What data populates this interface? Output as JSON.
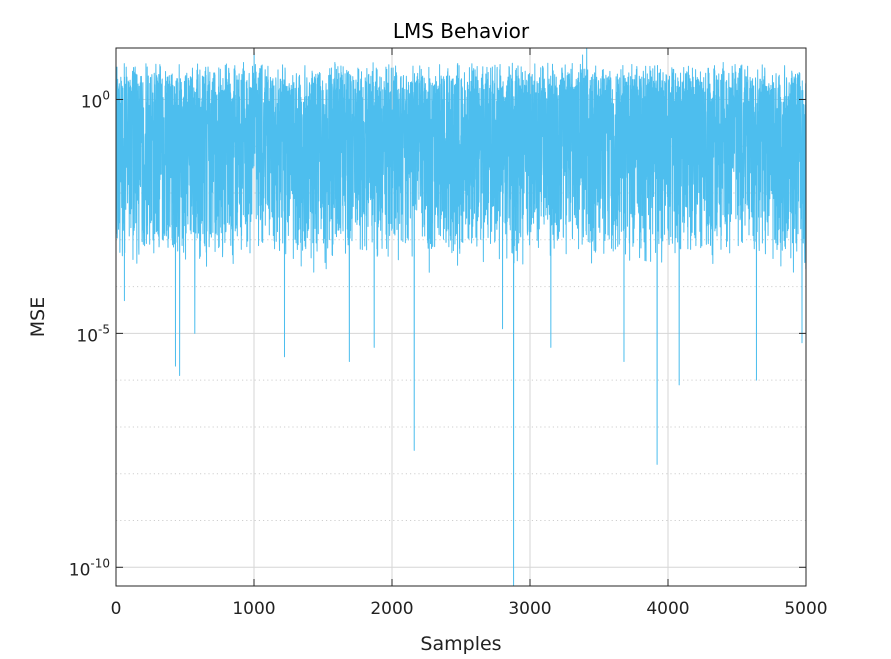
{
  "chart_data": {
    "type": "line",
    "title": "LMS Behavior",
    "xlabel": "Samples",
    "ylabel": "MSE",
    "x_range": [
      0,
      5000
    ],
    "y_scale": "log",
    "y_range_exponent": [
      -10.4,
      1.1
    ],
    "x_ticks": [
      {
        "value": 0,
        "label": "0"
      },
      {
        "value": 1000,
        "label": "1000"
      },
      {
        "value": 2000,
        "label": "2000"
      },
      {
        "value": 3000,
        "label": "3000"
      },
      {
        "value": 4000,
        "label": "4000"
      },
      {
        "value": 5000,
        "label": "5000"
      }
    ],
    "y_ticks": [
      {
        "exponent": 0,
        "base": "10",
        "exp_label": "0"
      },
      {
        "exponent": -5,
        "base": "10",
        "exp_label": "-5"
      },
      {
        "exponent": -10,
        "base": "10",
        "exp_label": "-10"
      }
    ],
    "y_minor_exponents": [
      -1,
      -2,
      -3,
      -4,
      -6,
      -7,
      -8,
      -9
    ],
    "grid": true,
    "line_color": "#4DBEEE",
    "series": [
      {
        "samples": 5000,
        "typical_log10_range": [
          -2.9,
          0.8
        ],
        "dips": [
          {
            "x": 60,
            "log10": -4.3
          },
          {
            "x": 150,
            "log10": -3.5
          },
          {
            "x": 430,
            "log10": -5.7
          },
          {
            "x": 460,
            "log10": -5.9
          },
          {
            "x": 570,
            "log10": -5.0
          },
          {
            "x": 1220,
            "log10": -5.5
          },
          {
            "x": 1690,
            "log10": -5.6
          },
          {
            "x": 1870,
            "log10": -5.3
          },
          {
            "x": 2160,
            "log10": -7.5
          },
          {
            "x": 2800,
            "log10": -4.9
          },
          {
            "x": 2880,
            "log10": -10.4
          },
          {
            "x": 3150,
            "log10": -5.3
          },
          {
            "x": 3680,
            "log10": -5.6
          },
          {
            "x": 3920,
            "log10": -7.8
          },
          {
            "x": 4080,
            "log10": -6.1
          },
          {
            "x": 4640,
            "log10": -6.0
          },
          {
            "x": 4970,
            "log10": -5.2
          }
        ],
        "peaks": [
          {
            "x": 1000,
            "log10": 1.0
          },
          {
            "x": 3410,
            "log10": 1.1
          },
          {
            "x": 3380,
            "log10": 0.95
          }
        ]
      }
    ]
  }
}
